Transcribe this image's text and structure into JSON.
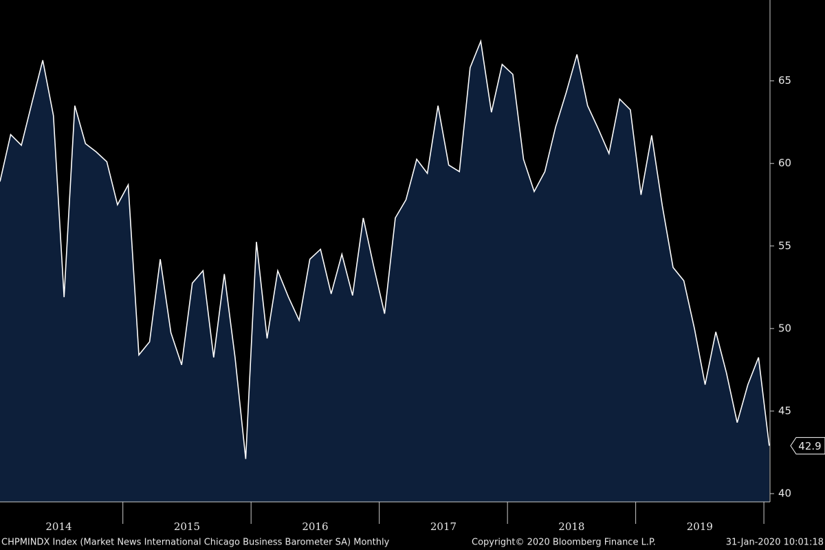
{
  "chart_data": {
    "type": "area",
    "values": [
      58.9,
      61.75,
      61.1,
      63.7,
      66.25,
      62.9,
      51.9,
      63.5,
      61.2,
      60.7,
      60.1,
      57.5,
      58.7,
      48.4,
      49.2,
      54.2,
      49.75,
      47.8,
      52.75,
      53.5,
      48.25,
      53.3,
      48.25,
      42.1,
      55.25,
      49.4,
      53.5,
      51.9,
      50.5,
      54.2,
      54.8,
      52.1,
      54.5,
      52.0,
      56.7,
      53.7,
      50.9,
      56.7,
      57.8,
      60.25,
      59.4,
      63.5,
      59.9,
      59.5,
      65.8,
      67.4,
      63.1,
      66.0,
      65.4,
      60.25,
      58.3,
      59.5,
      62.2,
      64.3,
      66.6,
      63.5,
      62.1,
      60.6,
      63.9,
      63.25,
      58.1,
      61.7,
      57.4,
      53.7,
      52.9,
      50.0,
      46.6,
      49.8,
      47.3,
      44.3,
      46.6,
      48.25,
      42.9
    ],
    "year_labels": [
      "2014",
      "2015",
      "2016",
      "2017",
      "2018",
      "2019"
    ],
    "color": "#0d1f3a",
    "line_color": "#ffffff",
    "ylim": [
      39.5,
      69.9
    ],
    "yticks": [
      40,
      45,
      50,
      55,
      60,
      65
    ],
    "footer": {
      "left": "CHPMINDX Index (Market News International Chicago Business Barometer SA) Monthly",
      "center": "Copyright© 2020 Bloomberg Finance L.P.",
      "right": "31-Jan-2020 10:01:18"
    }
  }
}
